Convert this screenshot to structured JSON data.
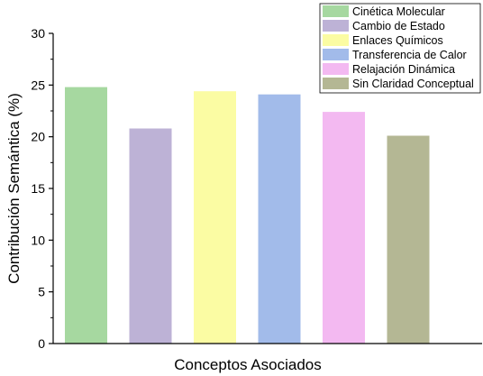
{
  "chart_data": {
    "type": "bar",
    "categories": [
      "Cinética Molecular",
      "Cambio de Estado",
      "Enlaces Químicos",
      "Transferencia de Calor",
      "Relajación Dinámica",
      "Sin Claridad Conceptual"
    ],
    "values": [
      24.8,
      20.8,
      24.4,
      24.1,
      22.4,
      20.1
    ],
    "colors": [
      "#a6d8a0",
      "#bdb2d6",
      "#fbfca3",
      "#a2bbea",
      "#f3b9f1",
      "#b4b794"
    ],
    "title": "",
    "xlabel": "Conceptos Asociados",
    "ylabel": "Contribución Semántica (%)",
    "ylim": [
      0,
      30
    ],
    "yticks": [
      "0",
      "5",
      "10",
      "15",
      "20",
      "25",
      "30"
    ],
    "grid": false,
    "legend": {
      "position": "top-right",
      "entries": [
        "Cinética Molecular",
        "Cambio de Estado",
        "Enlaces Químicos",
        "Transferencia de Calor",
        "Relajación Dinámica",
        "Sin Claridad Conceptual"
      ]
    }
  }
}
